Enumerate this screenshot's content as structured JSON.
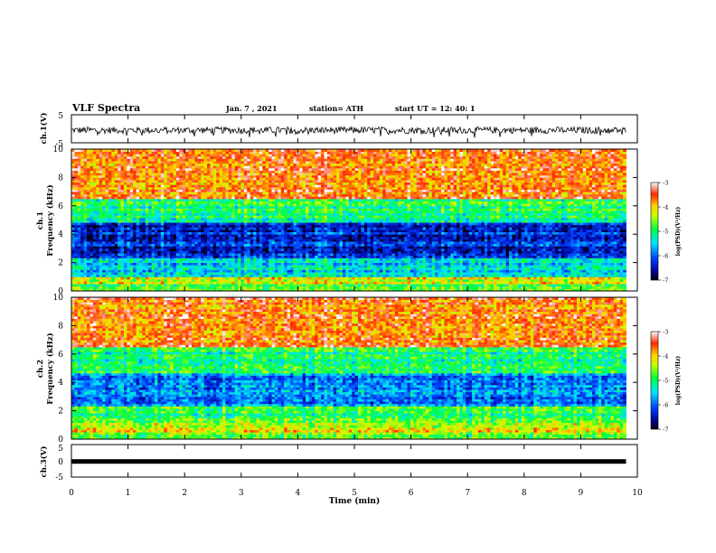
{
  "header": {
    "title": "VLF Spectra",
    "date": "Jan. 7 , 2021",
    "station": "station= ATH",
    "start": "start UT = 12: 40: 1"
  },
  "chart_data": [
    {
      "type": "line",
      "id": "ch1_waveform",
      "ylabel": "ch.1(V)",
      "ylim": [
        -5,
        5
      ],
      "yticks": [
        "5",
        "-5"
      ],
      "xlim": [
        0,
        10
      ],
      "description_of_values": "noisy waveform roughly between -2 and 1 V",
      "approx_level": -0.5
    },
    {
      "type": "heatmap",
      "id": "ch1_spectrogram",
      "ylabel": "ch.1\nFrequency (kHz)",
      "ylim": [
        0,
        10
      ],
      "yticks": [
        "0",
        "2",
        "4",
        "6",
        "8",
        "10"
      ],
      "xlim": [
        0,
        10
      ],
      "colorbar": {
        "label": "log(PSD)(V²/Hz)",
        "ticks": [
          "-3",
          "-4",
          "-5",
          "-6",
          "-7"
        ],
        "range": [
          -7,
          -3
        ]
      },
      "bands_kHz_logPSD": [
        {
          "f": [
            0,
            0.5
          ],
          "v": -4.8
        },
        {
          "f": [
            0.5,
            1.0
          ],
          "v": -4.2
        },
        {
          "f": [
            1.0,
            2.3
          ],
          "v": -5.5
        },
        {
          "f": [
            2.3,
            4.8
          ],
          "v": -6.3
        },
        {
          "f": [
            4.8,
            6.5
          ],
          "v": -5.0
        },
        {
          "f": [
            6.5,
            10
          ],
          "v": -3.6
        }
      ]
    },
    {
      "type": "heatmap",
      "id": "ch2_spectrogram",
      "ylabel": "ch.2\nFrequency (kHz)",
      "ylim": [
        0,
        10
      ],
      "yticks": [
        "0",
        "2",
        "4",
        "6",
        "8",
        "10"
      ],
      "xlim": [
        0,
        10
      ],
      "colorbar": {
        "label": "log(PSD)(V²/Hz)",
        "ticks": [
          "-3",
          "-4",
          "-5",
          "-6",
          "-7"
        ],
        "range": [
          -7,
          -3
        ]
      },
      "bands_kHz_logPSD": [
        {
          "f": [
            0,
            0.5
          ],
          "v": -4.6
        },
        {
          "f": [
            0.5,
            1.2
          ],
          "v": -4.2
        },
        {
          "f": [
            1.2,
            2.3
          ],
          "v": -4.9
        },
        {
          "f": [
            2.3,
            4.6
          ],
          "v": -5.8
        },
        {
          "f": [
            4.6,
            6.5
          ],
          "v": -5.0
        },
        {
          "f": [
            6.5,
            10
          ],
          "v": -3.6
        }
      ]
    },
    {
      "type": "line",
      "id": "ch3_waveform",
      "ylabel": "ch.3(V)",
      "ylim": [
        -5,
        5
      ],
      "yticks": [
        "5",
        "0",
        "-5"
      ],
      "xlim": [
        0,
        10
      ],
      "approx_level": -0.2
    }
  ],
  "xaxis": {
    "label": "Time (min)",
    "ticks": [
      "0",
      "1",
      "2",
      "3",
      "4",
      "5",
      "6",
      "7",
      "8",
      "9",
      "10"
    ],
    "data_end": 9.8
  }
}
